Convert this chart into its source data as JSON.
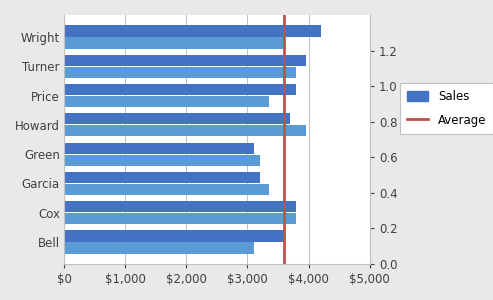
{
  "categories": [
    "Bell",
    "Cox",
    "Garcia",
    "Green",
    "Howard",
    "Price",
    "Turner",
    "Wright"
  ],
  "bar1_values": [
    3600,
    3800,
    3200,
    3100,
    3700,
    3800,
    3950,
    4200
  ],
  "bar2_values": [
    3100,
    3800,
    3350,
    3200,
    3950,
    3350,
    3800,
    3600
  ],
  "bar1_color": "#4472C4",
  "bar2_color": "#5B9BD5",
  "average_line": 3600,
  "average_color": "#C0504D",
  "xlim": [
    0,
    5000
  ],
  "xticks": [
    0,
    1000,
    2000,
    3000,
    4000,
    5000
  ],
  "ylim_right": [
    0,
    1.4
  ],
  "yticks_right": [
    0,
    0.2,
    0.4,
    0.6,
    0.8,
    1.0,
    1.2
  ],
  "bar_height": 0.38,
  "bar_gap": 0.03,
  "bg_outer": "#E9E9E9",
  "bg_color": "#FFFFFF",
  "plot_bg": "#FFFFFF",
  "grid_color": "#C0C0C0",
  "text_color": "#404040",
  "legend_sales": "Sales",
  "legend_average": "Average",
  "font_size": 8.5,
  "label_font_size": 8.5
}
